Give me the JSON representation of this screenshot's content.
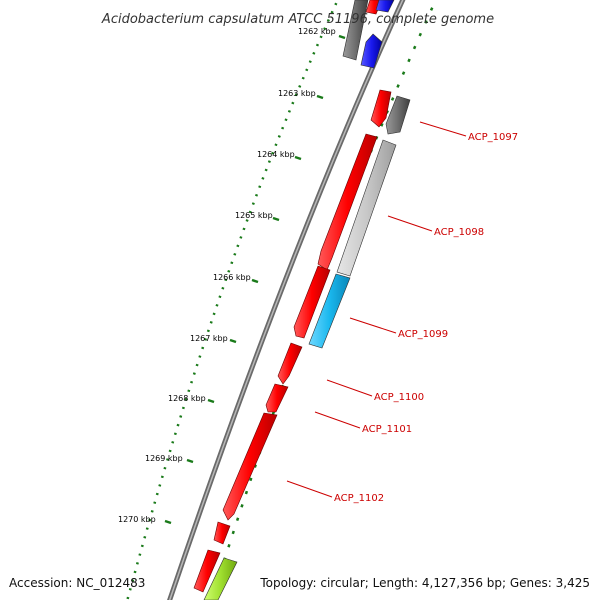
{
  "title": "Acidobacterium capsulatum ATCC 51196, complete genome",
  "footer": {
    "accession": "Accession: NC_012483",
    "summary": "Topology: circular; Length: 4,127,356 bp; Genes: 3,425"
  },
  "ticks": [
    "1262 kbp",
    "1263 kbp",
    "1264 kbp",
    "1265 kbp",
    "1266 kbp",
    "1267 kbp",
    "1268 kbp",
    "1269 kbp",
    "1270 kbp"
  ],
  "genes": [
    {
      "label": "ACP_1097",
      "color": "#cc0000"
    },
    {
      "label": "ACP_1098",
      "color": "#cc0000"
    },
    {
      "label": "ACP_1099",
      "color": "#cc0000"
    },
    {
      "label": "ACP_1100",
      "color": "#cc0000"
    },
    {
      "label": "ACP_1101",
      "color": "#cc0000"
    },
    {
      "label": "ACP_1102",
      "color": "#cc0000"
    }
  ],
  "colors": {
    "backbone": "#808080",
    "tick": "#1a7a1a",
    "forward_strand": "#ff0000",
    "reverse_gray": "#6e6e6e",
    "reverse_lightgray": "#c8c8c8",
    "reverse_cyan": "#1ab8ee",
    "blue": "#1a1aee",
    "green": "#a0e030"
  }
}
